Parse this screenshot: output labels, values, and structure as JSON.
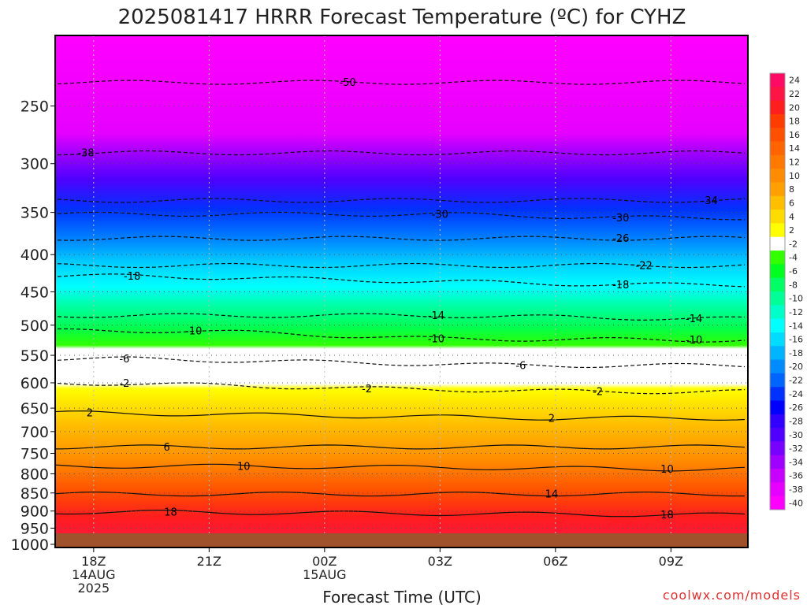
{
  "chart_data": {
    "type": "heatmap",
    "title": "2025081417 HRRR Forecast Temperature (ºC) for CYHZ",
    "xlabel": "Forecast Time (UTC)",
    "ylabel": "",
    "credit": "coolwx.com/models",
    "x_ticks": [
      {
        "hour": 18,
        "lines": [
          "18Z",
          "14AUG",
          "2025"
        ]
      },
      {
        "hour": 21,
        "lines": [
          "21Z"
        ]
      },
      {
        "hour": 24,
        "lines": [
          "00Z",
          "15AUG"
        ]
      },
      {
        "hour": 27,
        "lines": [
          "03Z"
        ]
      },
      {
        "hour": 30,
        "lines": [
          "06Z"
        ]
      },
      {
        "hour": 33,
        "lines": [
          "09Z"
        ]
      }
    ],
    "x_range_hours": [
      17,
      35
    ],
    "y_ticks": [
      250,
      300,
      350,
      400,
      450,
      500,
      550,
      600,
      650,
      700,
      750,
      800,
      850,
      900,
      950,
      1000
    ],
    "y_axis": "pressure (hPa), log scale, decreasing upward",
    "y_range_hpa": [
      1010,
      200
    ],
    "ground_color": "#a0522d",
    "colorbar_labels": [
      "24",
      "22",
      "20",
      "18",
      "16",
      "14",
      "12",
      "10",
      "8",
      "6",
      "4",
      "2",
      "-2",
      "-4",
      "-6",
      "-8",
      "-10",
      "-12",
      "-14",
      "-16",
      "-18",
      "-20",
      "-22",
      "-24",
      "-26",
      "-28",
      "-30",
      "-32",
      "-34",
      "-36",
      "-38",
      "-40"
    ],
    "colorbar_colors": [
      "#ff0a64",
      "#ff1446",
      "#ff1e1e",
      "#ff3c00",
      "#ff5000",
      "#ff6400",
      "#ff7800",
      "#ff8c00",
      "#ffa000",
      "#ffbe00",
      "#ffdc00",
      "#ffff00",
      "#ffffff",
      "#32ff00",
      "#00ff1e",
      "#00ff64",
      "#00ff96",
      "#00ffc8",
      "#00ffff",
      "#00dcff",
      "#00b4ff",
      "#008cff",
      "#0064ff",
      "#0032ff",
      "#0000ff",
      "#3200ff",
      "#5000ff",
      "#7800ff",
      "#a000ff",
      "#c800ff",
      "#e600ff",
      "#ff00ff"
    ],
    "contour_labels": [
      {
        "value": "-50",
        "hour": 24.6,
        "p": 232
      },
      {
        "value": "-38",
        "hour": 17.8,
        "p": 290
      },
      {
        "value": "-34",
        "hour": 34.0,
        "p": 337
      },
      {
        "value": "-30",
        "hour": 27.0,
        "p": 352
      },
      {
        "value": "-30",
        "hour": 31.7,
        "p": 356
      },
      {
        "value": "-26",
        "hour": 31.7,
        "p": 380
      },
      {
        "value": "-22",
        "hour": 32.3,
        "p": 414
      },
      {
        "value": "-18",
        "hour": 19.0,
        "p": 428
      },
      {
        "value": "-18",
        "hour": 31.7,
        "p": 440
      },
      {
        "value": "-14",
        "hour": 26.9,
        "p": 485
      },
      {
        "value": "-14",
        "hour": 33.6,
        "p": 490
      },
      {
        "value": "-10",
        "hour": 20.6,
        "p": 509
      },
      {
        "value": "-10",
        "hour": 26.9,
        "p": 522
      },
      {
        "value": "-10",
        "hour": 33.6,
        "p": 524
      },
      {
        "value": "-6",
        "hour": 18.8,
        "p": 556
      },
      {
        "value": "-6",
        "hour": 29.1,
        "p": 568
      },
      {
        "value": "-2",
        "hour": 18.8,
        "p": 601
      },
      {
        "value": "-2",
        "hour": 25.1,
        "p": 611
      },
      {
        "value": "-2",
        "hour": 31.1,
        "p": 617
      },
      {
        "value": "2",
        "hour": 17.9,
        "p": 660
      },
      {
        "value": "2",
        "hour": 29.9,
        "p": 671
      },
      {
        "value": "6",
        "hour": 19.9,
        "p": 735
      },
      {
        "value": "10",
        "hour": 21.9,
        "p": 781
      },
      {
        "value": "10",
        "hour": 32.9,
        "p": 788
      },
      {
        "value": "14",
        "hour": 29.9,
        "p": 853
      },
      {
        "value": "18",
        "hour": 20.0,
        "p": 903
      },
      {
        "value": "18",
        "hour": 32.9,
        "p": 911
      }
    ],
    "colorbar_position": "right"
  }
}
